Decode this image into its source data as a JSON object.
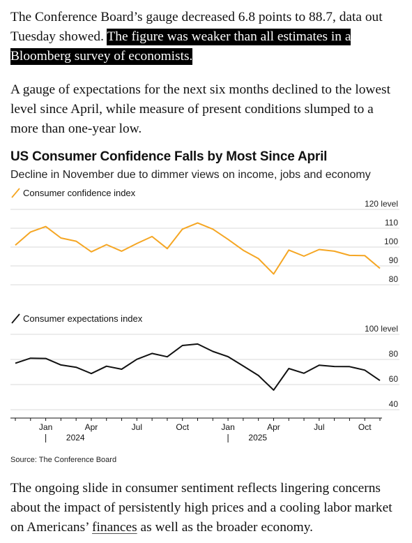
{
  "article": {
    "p1_plain": "The Conference Board’s gauge decreased 6.8 points to 88.7, data out Tuesday showed. ",
    "p1_highlight": "The figure was weaker than all estimates in a Bloomberg survey of economists.",
    "p2": "A gauge of expectations for the next six months declined to the lowest level since April, while measure of present conditions slumped to a more than one-year low.",
    "p3_before": "The ongoing slide in consumer sentiment reflects lingering concerns about the impact of persistently high prices and a cooling labor market on Americans’ ",
    "p3_link": "finances",
    "p3_after": " as well as the broader economy."
  },
  "chart_data": {
    "type": "line",
    "title": "US Consumer Confidence Falls by Most Since April",
    "subtitle": "Decline in November due to dimmer views on income, jobs and economy",
    "source": "Source: The Conference Board",
    "x": [
      "2023-11",
      "2023-12",
      "2024-01",
      "2024-02",
      "2024-03",
      "2024-04",
      "2024-05",
      "2024-06",
      "2024-07",
      "2024-08",
      "2024-09",
      "2024-10",
      "2024-11",
      "2024-12",
      "2025-01",
      "2025-02",
      "2025-03",
      "2025-04",
      "2025-05",
      "2025-06",
      "2025-07",
      "2025-08",
      "2025-09",
      "2025-10",
      "2025-11"
    ],
    "x_tick_labels": [
      "Jan",
      "Apr",
      "Jul",
      "Oct",
      "Jan",
      "Apr",
      "Jul",
      "Oct"
    ],
    "x_tick_dates": [
      "2024-01",
      "2024-04",
      "2024-07",
      "2024-10",
      "2025-01",
      "2025-04",
      "2025-07",
      "2025-10"
    ],
    "year_labels": [
      "2024",
      "2025"
    ],
    "panels": [
      {
        "name": "Consumer confidence index",
        "color": "#f5a623",
        "ylim": [
          80,
          120
        ],
        "y_ticks": [
          80,
          90,
          100,
          110,
          120
        ],
        "y_tick_labels": [
          "80",
          "90",
          "100",
          "110",
          "120 level"
        ],
        "grid": true,
        "values": [
          101,
          108,
          110.9,
          104.8,
          103.1,
          97.5,
          101.3,
          97.8,
          101.9,
          105.6,
          99.2,
          109.5,
          112.8,
          109.5,
          104.1,
          98.3,
          93.9,
          85.7,
          98.4,
          95.2,
          98.7,
          97.8,
          95.6,
          95.5,
          88.7
        ]
      },
      {
        "name": "Consumer expectations index",
        "color": "#111111",
        "ylim": [
          40,
          100
        ],
        "y_ticks": [
          40,
          60,
          80,
          100
        ],
        "y_tick_labels": [
          "40",
          "60",
          "80",
          "100 level"
        ],
        "grid": true,
        "values": [
          77,
          81,
          80.8,
          75.6,
          73.8,
          68.8,
          74.6,
          72.2,
          80.1,
          84.8,
          82.1,
          91.1,
          92.3,
          86.4,
          82.2,
          74.8,
          67.2,
          55.6,
          72.8,
          69,
          75.4,
          74.4,
          74.3,
          71.5,
          63.2
        ]
      }
    ]
  }
}
